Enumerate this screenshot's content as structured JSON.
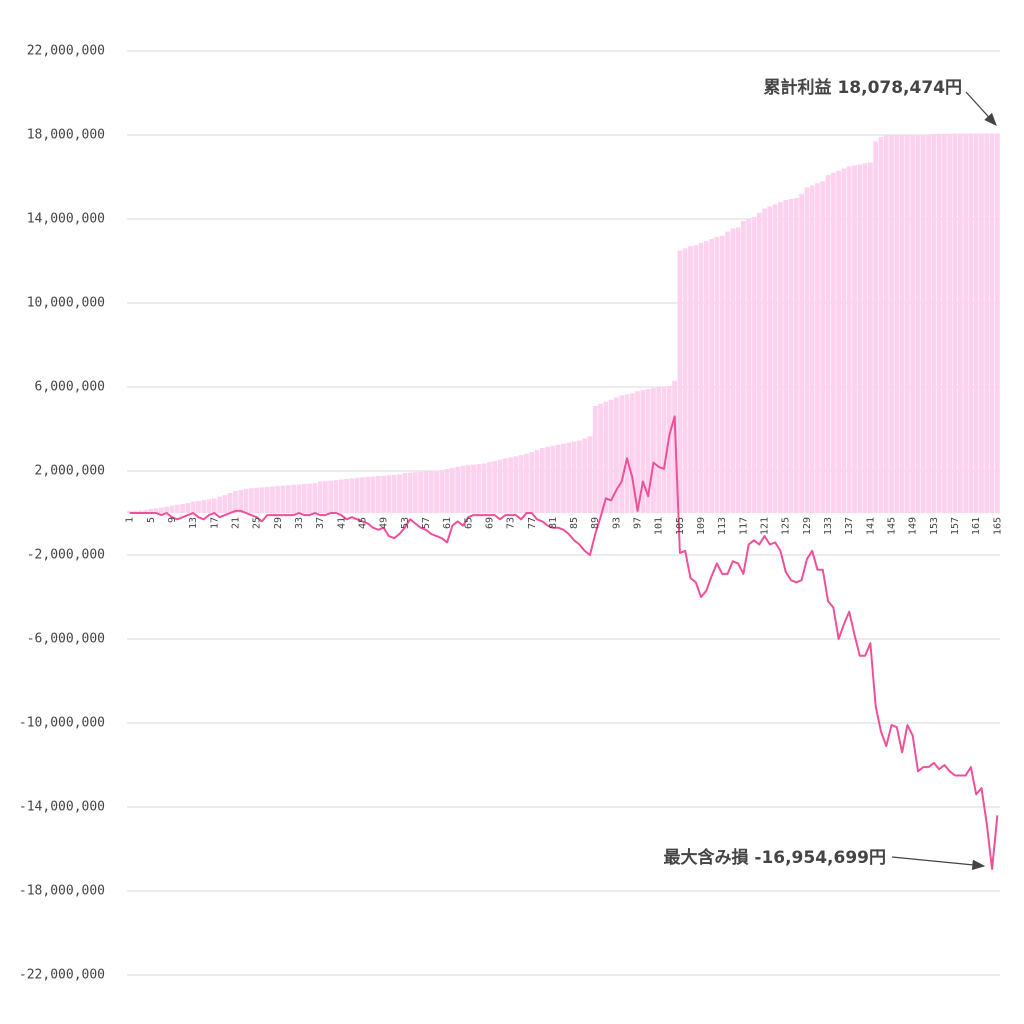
{
  "chart_data": {
    "type": "bar",
    "categories": [
      "1",
      null,
      null,
      null,
      "5",
      null,
      null,
      null,
      "9",
      null,
      null,
      null,
      "13",
      null,
      null,
      null,
      "17",
      null,
      null,
      null,
      "21",
      null,
      null,
      null,
      "25",
      null,
      null,
      null,
      "29",
      null,
      null,
      null,
      "33",
      null,
      null,
      null,
      "37",
      null,
      null,
      null,
      "41",
      null,
      null,
      null,
      "45",
      null,
      null,
      null,
      "49",
      null,
      null,
      null,
      "53",
      null,
      null,
      null,
      "57",
      null,
      null,
      null,
      "61",
      null,
      null,
      null,
      "65",
      null,
      null,
      null,
      "69",
      null,
      null,
      null,
      "73",
      null,
      null,
      null,
      "77",
      null,
      null,
      null,
      "81",
      null,
      null,
      null,
      "85",
      null,
      null,
      null,
      "89",
      null,
      null,
      null,
      "93",
      null,
      null,
      null,
      "97",
      null,
      null,
      null,
      "101",
      null,
      null,
      null,
      "105",
      null,
      null,
      null,
      "109",
      null,
      null,
      null,
      "113",
      null,
      null,
      null,
      "117",
      null,
      null,
      null,
      "121",
      null,
      null,
      null,
      "125",
      null,
      null,
      null,
      "129",
      null,
      null,
      null,
      "133",
      null,
      null,
      null,
      "137",
      null,
      null,
      null,
      "141",
      null,
      null,
      null,
      "145",
      null,
      null,
      null,
      "149",
      null,
      null,
      null,
      "153",
      null,
      null,
      null,
      "157",
      null,
      null,
      null,
      "161",
      null,
      null,
      null,
      "165"
    ],
    "series": [
      {
        "type": "bar",
        "color": "#fcd2ef",
        "values": [
          100000,
          100000,
          120000,
          150000,
          200000,
          230000,
          260000,
          300000,
          350000,
          400000,
          430000,
          480000,
          550000,
          580000,
          610000,
          650000,
          700000,
          780000,
          850000,
          950000,
          1050000,
          1100000,
          1150000,
          1180000,
          1200000,
          1220000,
          1240000,
          1260000,
          1280000,
          1300000,
          1320000,
          1340000,
          1360000,
          1380000,
          1400000,
          1420000,
          1500000,
          1520000,
          1540000,
          1560000,
          1600000,
          1620000,
          1650000,
          1680000,
          1700000,
          1720000,
          1740000,
          1760000,
          1780000,
          1800000,
          1820000,
          1840000,
          1900000,
          1920000,
          1940000,
          1960000,
          1980000,
          2000000,
          2020000,
          2050000,
          2100000,
          2150000,
          2200000,
          2250000,
          2280000,
          2300000,
          2330000,
          2360000,
          2420000,
          2480000,
          2540000,
          2600000,
          2650000,
          2700000,
          2760000,
          2820000,
          2900000,
          3000000,
          3100000,
          3150000,
          3200000,
          3250000,
          3300000,
          3350000,
          3400000,
          3450000,
          3550000,
          3650000,
          5100000,
          5200000,
          5300000,
          5400000,
          5500000,
          5600000,
          5650000,
          5700000,
          5800000,
          5850000,
          5900000,
          5950000,
          5980000,
          6000000,
          6050000,
          6300000,
          12500000,
          12600000,
          12700000,
          12750000,
          12850000,
          12950000,
          13050000,
          13150000,
          13200000,
          13400000,
          13550000,
          13600000,
          13900000,
          14000000,
          14100000,
          14300000,
          14500000,
          14600000,
          14700000,
          14800000,
          14900000,
          14950000,
          15000000,
          15200000,
          15500000,
          15600000,
          15700000,
          15800000,
          16100000,
          16200000,
          16300000,
          16400000,
          16500000,
          16550000,
          16600000,
          16650000,
          16700000,
          17700000,
          17900000,
          18000000,
          18000000,
          18000000,
          18000000,
          18000000,
          18000000,
          18010000,
          18020000,
          18030000,
          18050000,
          18060000,
          18060000,
          18060000,
          18070000,
          18070000,
          18070000,
          18070000,
          18070000,
          18070000,
          18070000,
          18070000,
          18078474
        ]
      },
      {
        "type": "line",
        "color": "#f0509a",
        "values": [
          0,
          0,
          0,
          0,
          0,
          0,
          -100000,
          0,
          -200000,
          -300000,
          -200000,
          -100000,
          0,
          -200000,
          -300000,
          -100000,
          0,
          -200000,
          -100000,
          0,
          100000,
          100000,
          0,
          -100000,
          -200000,
          -400000,
          -100000,
          -100000,
          -100000,
          -100000,
          -100000,
          -100000,
          0,
          -100000,
          -100000,
          0,
          -100000,
          -100000,
          0,
          0,
          -100000,
          -300000,
          -200000,
          -300000,
          -400000,
          -500000,
          -700000,
          -800000,
          -700000,
          -1100000,
          -1200000,
          -1000000,
          -700000,
          -300000,
          -500000,
          -700000,
          -800000,
          -1000000,
          -1100000,
          -1200000,
          -1400000,
          -600000,
          -400000,
          -600000,
          -200000,
          -100000,
          -100000,
          -100000,
          -100000,
          -100000,
          -300000,
          -100000,
          -100000,
          -100000,
          -300000,
          0,
          0,
          -300000,
          -400000,
          -600000,
          -700000,
          -700000,
          -800000,
          -1000000,
          -1300000,
          -1500000,
          -1800000,
          -2000000,
          -1000000,
          -200000,
          700000,
          600000,
          1100000,
          1500000,
          2600000,
          1700000,
          100000,
          1500000,
          800000,
          2400000,
          2200000,
          2100000,
          3700000,
          4600000,
          -1900000,
          -1800000,
          -3100000,
          -3300000,
          -4000000,
          -3700000,
          -3000000,
          -2400000,
          -2900000,
          -2900000,
          -2300000,
          -2400000,
          -2900000,
          -1500000,
          -1300000,
          -1500000,
          -1100000,
          -1500000,
          -1400000,
          -1800000,
          -2800000,
          -3200000,
          -3300000,
          -3200000,
          -2200000,
          -1800000,
          -2700000,
          -2700000,
          -4200000,
          -4500000,
          -6000000,
          -5300000,
          -4700000,
          -5800000,
          -6800000,
          -6800000,
          -6200000,
          -9200000,
          -10400000,
          -11100000,
          -10100000,
          -10200000,
          -11400000,
          -10100000,
          -10600000,
          -12300000,
          -12100000,
          -12100000,
          -11900000,
          -12200000,
          -12000000,
          -12300000,
          -12500000,
          -12500000,
          -12500000,
          -12100000,
          -13400000,
          -13100000,
          -14800000,
          -16954699,
          -14400000
        ]
      }
    ],
    "ylim": [
      -22000000,
      22000000
    ],
    "yticks": [
      {
        "value": 22000000,
        "label": "22,000,000"
      },
      {
        "value": 18000000,
        "label": "18,000,000"
      },
      {
        "value": 14000000,
        "label": "14,000,000"
      },
      {
        "value": 10000000,
        "label": "10,000,000"
      },
      {
        "value": 6000000,
        "label": "6,000,000"
      },
      {
        "value": 2000000,
        "label": "2,000,000"
      },
      {
        "value": -2000000,
        "label": "-2,000,000"
      },
      {
        "value": -6000000,
        "label": "-6,000,000"
      },
      {
        "value": -10000000,
        "label": "-10,000,000"
      },
      {
        "value": -14000000,
        "label": "-14,000,000"
      },
      {
        "value": -18000000,
        "label": "-18,000,000"
      },
      {
        "value": -22000000,
        "label": "-22,000,000"
      }
    ],
    "grid": true,
    "annotations": [
      {
        "text": "累計利益 18,078,474円",
        "color": "#111111"
      },
      {
        "text": "最大含み損 -16,954,699円",
        "color": "#ff0000"
      }
    ]
  }
}
